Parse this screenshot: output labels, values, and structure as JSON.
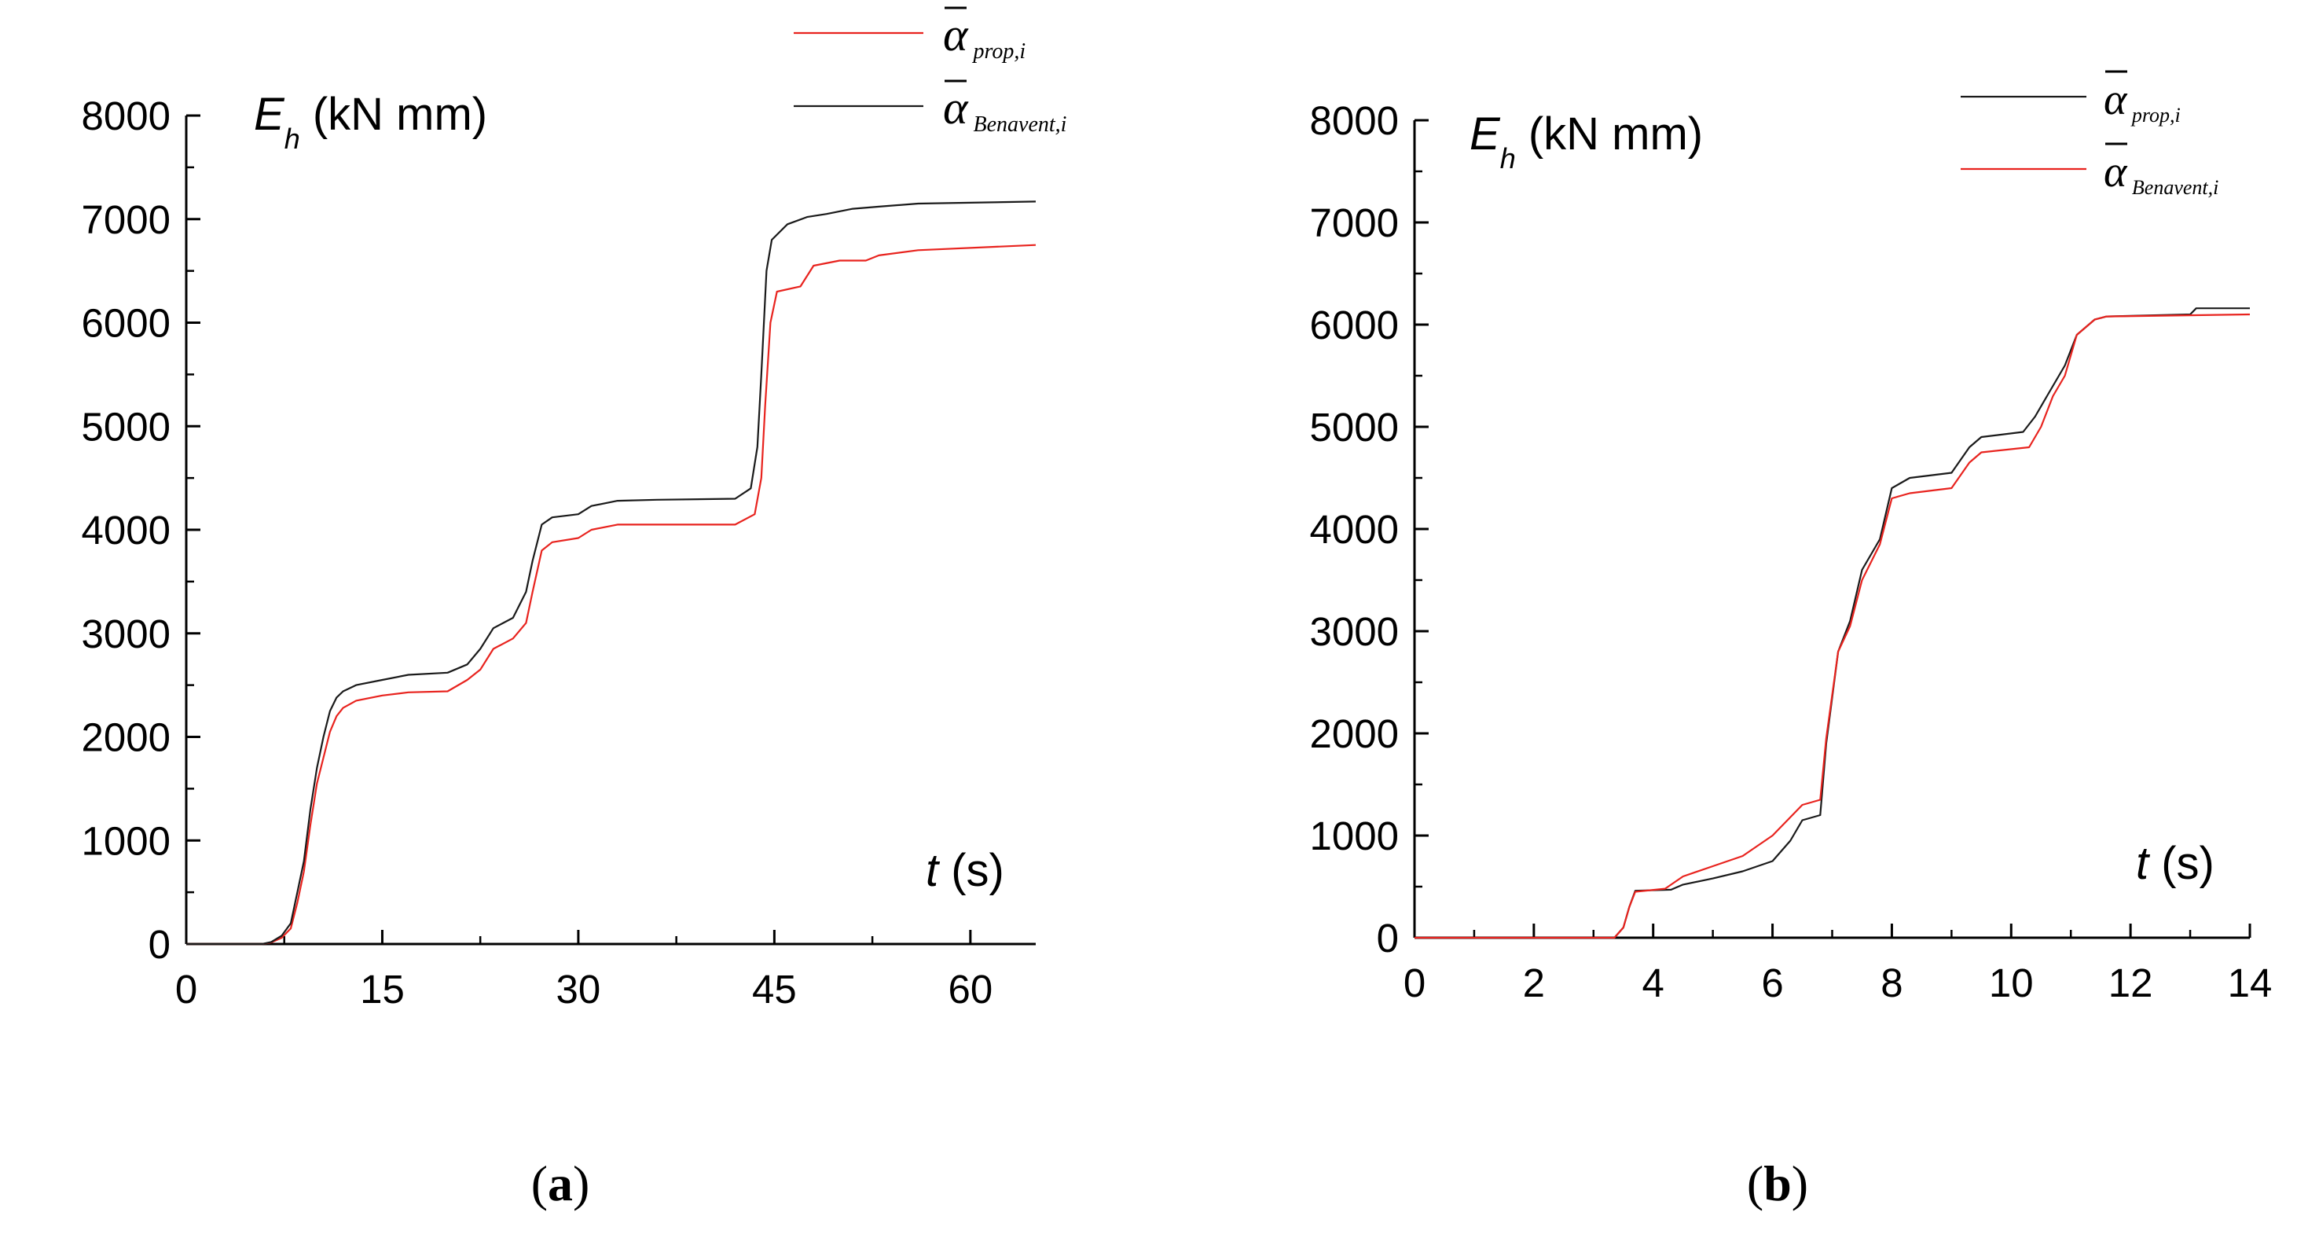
{
  "chart_data": [
    {
      "type": "line",
      "panel_label": "a",
      "ylabel": {
        "symbol": "E",
        "subscript": "h",
        "unit": "(kN mm)"
      },
      "xlabel": {
        "symbol": "t",
        "unit": "(s)"
      },
      "xlim": [
        0,
        65
      ],
      "ylim": [
        0,
        8000
      ],
      "xticks": [
        "0",
        "15",
        "30",
        "45",
        "60"
      ],
      "yticks": [
        "0",
        "1000",
        "2000",
        "3000",
        "4000",
        "5000",
        "6000",
        "7000",
        "8000"
      ],
      "legend": {
        "position": "top-right",
        "entries": [
          {
            "symbol": "α",
            "subscript": "prop,i",
            "color": "#e8231e"
          },
          {
            "symbol": "α",
            "subscript": "Benavent,i",
            "color": "#1a1a1a"
          }
        ]
      },
      "series": [
        {
          "name": "α prop,i",
          "color": "#e8231e",
          "points": [
            [
              0,
              0
            ],
            [
              5.8,
              0
            ],
            [
              6.5,
              15
            ],
            [
              7.3,
              60
            ],
            [
              8,
              150
            ],
            [
              8.5,
              400
            ],
            [
              9,
              700
            ],
            [
              9.5,
              1150
            ],
            [
              10,
              1550
            ],
            [
              10.5,
              1800
            ],
            [
              11,
              2050
            ],
            [
              11.5,
              2200
            ],
            [
              12,
              2280
            ],
            [
              13,
              2350
            ],
            [
              15,
              2400
            ],
            [
              17,
              2430
            ],
            [
              20,
              2440
            ],
            [
              21.5,
              2550
            ],
            [
              22.5,
              2650
            ],
            [
              23.5,
              2850
            ],
            [
              25,
              2950
            ],
            [
              26,
              3100
            ],
            [
              26.5,
              3400
            ],
            [
              27.2,
              3800
            ],
            [
              28,
              3880
            ],
            [
              30,
              3920
            ],
            [
              31,
              4000
            ],
            [
              33,
              4050
            ],
            [
              36,
              4050
            ],
            [
              42,
              4050
            ],
            [
              43.5,
              4150
            ],
            [
              44,
              4500
            ],
            [
              44.3,
              5200
            ],
            [
              44.7,
              6000
            ],
            [
              45.2,
              6300
            ],
            [
              47,
              6350
            ],
            [
              48,
              6550
            ],
            [
              50,
              6600
            ],
            [
              52,
              6600
            ],
            [
              53,
              6650
            ],
            [
              56,
              6700
            ],
            [
              65,
              6750
            ]
          ]
        },
        {
          "name": "α Benavent,i",
          "color": "#1a1a1a",
          "points": [
            [
              0,
              0
            ],
            [
              5.8,
              0
            ],
            [
              6.5,
              20
            ],
            [
              7.3,
              80
            ],
            [
              8,
              200
            ],
            [
              8.5,
              500
            ],
            [
              9,
              800
            ],
            [
              9.5,
              1300
            ],
            [
              10,
              1700
            ],
            [
              10.5,
              2000
            ],
            [
              11,
              2250
            ],
            [
              11.5,
              2380
            ],
            [
              12,
              2440
            ],
            [
              13,
              2500
            ],
            [
              15,
              2550
            ],
            [
              17,
              2600
            ],
            [
              20,
              2620
            ],
            [
              21.5,
              2700
            ],
            [
              22.5,
              2850
            ],
            [
              23.5,
              3050
            ],
            [
              25,
              3150
            ],
            [
              26,
              3400
            ],
            [
              26.5,
              3700
            ],
            [
              27.2,
              4050
            ],
            [
              28,
              4120
            ],
            [
              30,
              4150
            ],
            [
              31,
              4230
            ],
            [
              33,
              4280
            ],
            [
              36,
              4290
            ],
            [
              42,
              4300
            ],
            [
              43.2,
              4400
            ],
            [
              43.7,
              4800
            ],
            [
              44,
              5500
            ],
            [
              44.4,
              6500
            ],
            [
              44.8,
              6800
            ],
            [
              46,
              6950
            ],
            [
              47.5,
              7020
            ],
            [
              49,
              7050
            ],
            [
              51,
              7100
            ],
            [
              53,
              7120
            ],
            [
              56,
              7150
            ],
            [
              65,
              7170
            ]
          ]
        }
      ]
    },
    {
      "type": "line",
      "panel_label": "b",
      "ylabel": {
        "symbol": "E",
        "subscript": "h",
        "unit": "(kN mm)"
      },
      "xlabel": {
        "symbol": "t",
        "unit": "(s)"
      },
      "xlim": [
        0,
        14
      ],
      "ylim": [
        0,
        8000
      ],
      "xticks": [
        "0",
        "2",
        "4",
        "6",
        "8",
        "10",
        "12",
        "14"
      ],
      "yticks": [
        "0",
        "1000",
        "2000",
        "3000",
        "4000",
        "5000",
        "6000",
        "7000",
        "8000"
      ],
      "legend": {
        "position": "top-right",
        "entries": [
          {
            "symbol": "α",
            "subscript": "prop,i",
            "color": "#1a1a1a"
          },
          {
            "symbol": "α",
            "subscript": "Benavent,i",
            "color": "#e8231e"
          }
        ]
      },
      "series": [
        {
          "name": "α prop,i",
          "color": "#1a1a1a",
          "points": [
            [
              0,
              0
            ],
            [
              3.35,
              0
            ],
            [
              3.5,
              100
            ],
            [
              3.6,
              300
            ],
            [
              3.7,
              460
            ],
            [
              4.3,
              470
            ],
            [
              4.5,
              520
            ],
            [
              5,
              580
            ],
            [
              5.5,
              650
            ],
            [
              6,
              750
            ],
            [
              6.3,
              950
            ],
            [
              6.5,
              1150
            ],
            [
              6.8,
              1200
            ],
            [
              6.9,
              1900
            ],
            [
              7.1,
              2800
            ],
            [
              7.3,
              3100
            ],
            [
              7.5,
              3600
            ],
            [
              7.8,
              3900
            ],
            [
              8,
              4400
            ],
            [
              8.3,
              4500
            ],
            [
              9,
              4550
            ],
            [
              9.3,
              4800
            ],
            [
              9.5,
              4900
            ],
            [
              10.2,
              4950
            ],
            [
              10.4,
              5100
            ],
            [
              10.6,
              5300
            ],
            [
              10.9,
              5600
            ],
            [
              11.1,
              5900
            ],
            [
              11.4,
              6050
            ],
            [
              11.6,
              6080
            ],
            [
              13,
              6100
            ],
            [
              13.1,
              6160
            ],
            [
              14,
              6160
            ]
          ]
        },
        {
          "name": "α Benavent,i",
          "color": "#e8231e",
          "points": [
            [
              0,
              0
            ],
            [
              3.35,
              0
            ],
            [
              3.5,
              100
            ],
            [
              3.6,
              300
            ],
            [
              3.7,
              450
            ],
            [
              4.2,
              480
            ],
            [
              4.5,
              600
            ],
            [
              5,
              700
            ],
            [
              5.5,
              800
            ],
            [
              6,
              1000
            ],
            [
              6.5,
              1300
            ],
            [
              6.8,
              1350
            ],
            [
              6.9,
              1950
            ],
            [
              7.1,
              2800
            ],
            [
              7.3,
              3050
            ],
            [
              7.5,
              3500
            ],
            [
              7.8,
              3850
            ],
            [
              8,
              4300
            ],
            [
              8.3,
              4350
            ],
            [
              9,
              4400
            ],
            [
              9.3,
              4650
            ],
            [
              9.5,
              4750
            ],
            [
              10.3,
              4800
            ],
            [
              10.5,
              5000
            ],
            [
              10.7,
              5300
            ],
            [
              10.9,
              5500
            ],
            [
              11.1,
              5900
            ],
            [
              11.4,
              6050
            ],
            [
              11.6,
              6080
            ],
            [
              14,
              6100
            ]
          ]
        }
      ]
    }
  ]
}
